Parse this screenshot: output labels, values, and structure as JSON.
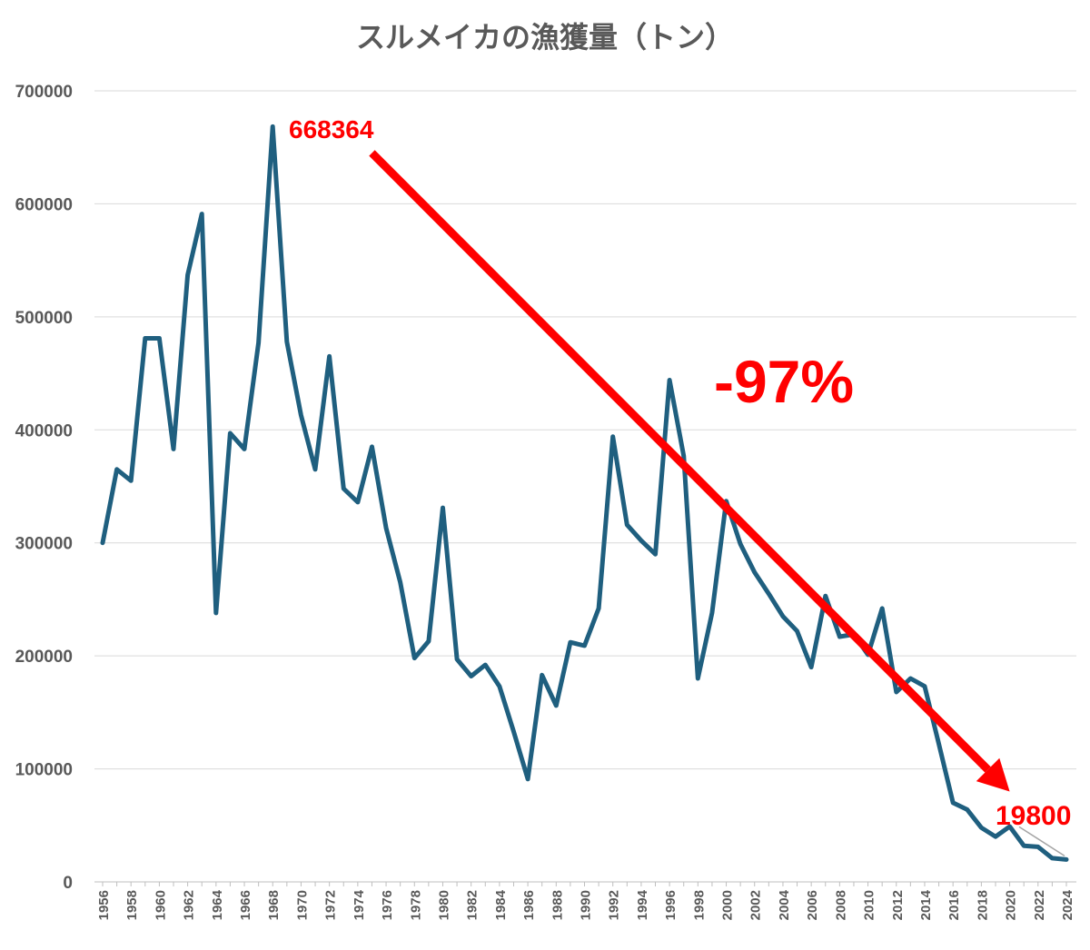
{
  "chart_data": {
    "type": "line",
    "title": "スルメイカの漁獲量（トン）",
    "xlabel": "",
    "ylabel": "",
    "ylim": [
      0,
      700000
    ],
    "yticks": [
      0,
      100000,
      200000,
      300000,
      400000,
      500000,
      600000,
      700000
    ],
    "ytick_labels": [
      "0",
      "100000",
      "200000",
      "300000",
      "400000",
      "500000",
      "600000",
      "700000"
    ],
    "grid": true,
    "series": [
      {
        "name": "スルメイカの漁獲量",
        "color": "#1f5f7f",
        "x": [
          1956,
          1957,
          1958,
          1959,
          1960,
          1961,
          1962,
          1963,
          1964,
          1965,
          1966,
          1967,
          1968,
          1969,
          1970,
          1971,
          1972,
          1973,
          1974,
          1975,
          1976,
          1977,
          1978,
          1979,
          1980,
          1981,
          1982,
          1983,
          1984,
          1985,
          1986,
          1987,
          1988,
          1989,
          1990,
          1991,
          1992,
          1993,
          1994,
          1995,
          1996,
          1997,
          1998,
          1999,
          2000,
          2001,
          2002,
          2003,
          2004,
          2005,
          2006,
          2007,
          2008,
          2009,
          2010,
          2011,
          2012,
          2013,
          2014,
          2015,
          2016,
          2017,
          2018,
          2019,
          2020,
          2021,
          2022,
          2023,
          2024
        ],
        "values": [
          300000,
          365000,
          355000,
          481000,
          481000,
          383000,
          537000,
          591000,
          238000,
          397000,
          383000,
          477000,
          668364,
          478000,
          413000,
          365000,
          465000,
          348000,
          336000,
          385000,
          313000,
          265000,
          198000,
          213000,
          331000,
          197000,
          182000,
          192000,
          173000,
          133000,
          91000,
          183000,
          156000,
          212000,
          209000,
          242000,
          394000,
          316000,
          302000,
          290000,
          444000,
          377000,
          180000,
          238000,
          337000,
          299000,
          274000,
          255000,
          235000,
          222000,
          190000,
          253000,
          217000,
          219000,
          201000,
          242000,
          168000,
          180000,
          173000,
          122000,
          70000,
          64000,
          48000,
          40000,
          49000,
          32000,
          31000,
          21000,
          19800
        ]
      }
    ],
    "annotations": [
      {
        "text": "668364",
        "year": 1968,
        "color": "#ff0000"
      },
      {
        "text": "19800",
        "year": 2024,
        "color": "#ff0000"
      },
      {
        "text": "-97%",
        "color": "#ff0000"
      }
    ],
    "trend_arrow": {
      "from": [
        1975,
        645000
      ],
      "to": [
        2020,
        80000
      ],
      "color": "#ff0000"
    }
  }
}
